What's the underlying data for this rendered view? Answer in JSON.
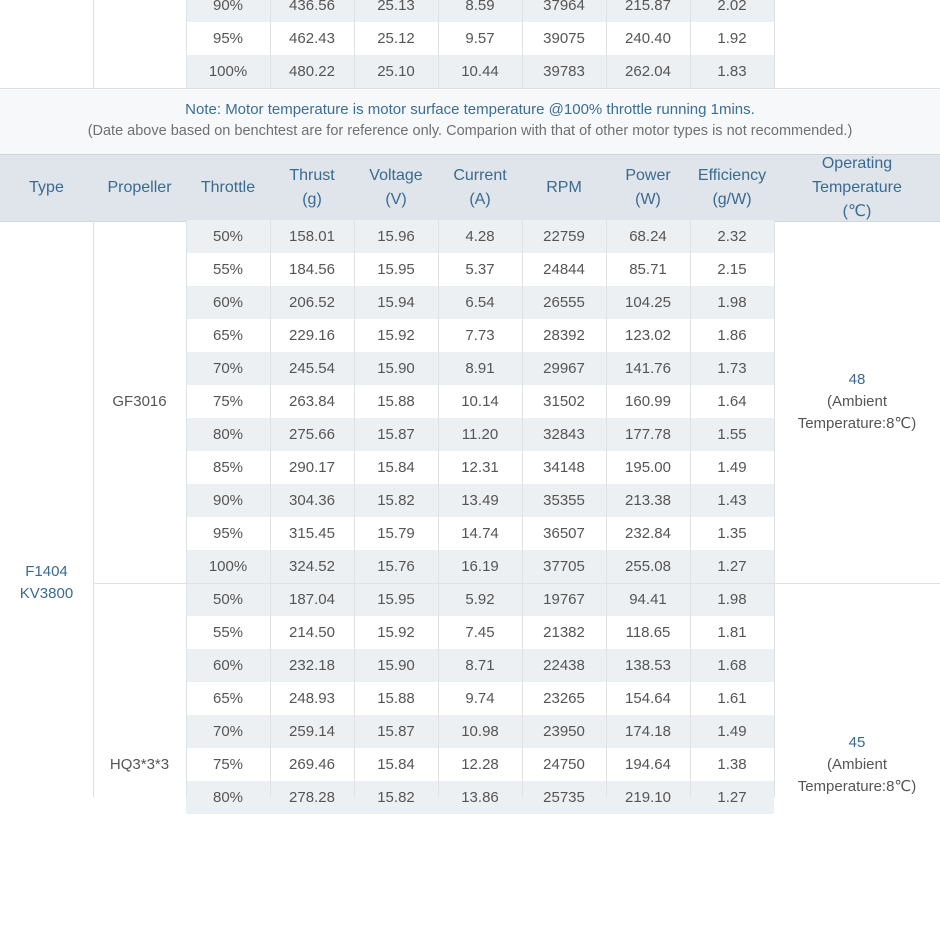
{
  "top_table": {
    "rows": [
      [
        "90%",
        "436.56",
        "25.13",
        "8.59",
        "37964",
        "215.87",
        "2.02"
      ],
      [
        "95%",
        "462.43",
        "25.12",
        "9.57",
        "39075",
        "240.40",
        "1.92"
      ],
      [
        "100%",
        "480.22",
        "25.10",
        "10.44",
        "39783",
        "262.04",
        "1.83"
      ]
    ]
  },
  "notes": {
    "line1": "Note: Motor temperature is motor surface temperature @100% throttle running 1mins.",
    "line2": "(Date above based on benchtest are for reference only. Comparion with that of other motor types is not recommended.)"
  },
  "header": {
    "columns": [
      [
        "Type"
      ],
      [
        "Propeller"
      ],
      [
        "Throttle"
      ],
      [
        "Thrust",
        "(g)"
      ],
      [
        "Voltage",
        "(V)"
      ],
      [
        "Current",
        "(A)"
      ],
      [
        "RPM"
      ],
      [
        "Power",
        "(W)"
      ],
      [
        "Efficiency",
        "(g/W)"
      ],
      [
        "Operating",
        "Temperature",
        "(℃)"
      ]
    ]
  },
  "motor": {
    "type_lines": [
      "F1404",
      "KV3800"
    ],
    "groups": [
      {
        "propeller": "GF3016",
        "temperature_lines": [
          "48",
          "(Ambient",
          "Temperature:8℃)"
        ],
        "rows": [
          [
            "50%",
            "158.01",
            "15.96",
            "4.28",
            "22759",
            "68.24",
            "2.32"
          ],
          [
            "55%",
            "184.56",
            "15.95",
            "5.37",
            "24844",
            "85.71",
            "2.15"
          ],
          [
            "60%",
            "206.52",
            "15.94",
            "6.54",
            "26555",
            "104.25",
            "1.98"
          ],
          [
            "65%",
            "229.16",
            "15.92",
            "7.73",
            "28392",
            "123.02",
            "1.86"
          ],
          [
            "70%",
            "245.54",
            "15.90",
            "8.91",
            "29967",
            "141.76",
            "1.73"
          ],
          [
            "75%",
            "263.84",
            "15.88",
            "10.14",
            "31502",
            "160.99",
            "1.64"
          ],
          [
            "80%",
            "275.66",
            "15.87",
            "11.20",
            "32843",
            "177.78",
            "1.55"
          ],
          [
            "85%",
            "290.17",
            "15.84",
            "12.31",
            "34148",
            "195.00",
            "1.49"
          ],
          [
            "90%",
            "304.36",
            "15.82",
            "13.49",
            "35355",
            "213.38",
            "1.43"
          ],
          [
            "95%",
            "315.45",
            "15.79",
            "14.74",
            "36507",
            "232.84",
            "1.35"
          ],
          [
            "100%",
            "324.52",
            "15.76",
            "16.19",
            "37705",
            "255.08",
            "1.27"
          ]
        ]
      },
      {
        "propeller": "HQ3*3*3",
        "temperature_lines": [
          "45",
          "(Ambient",
          "Temperature:8℃)"
        ],
        "rows": [
          [
            "50%",
            "187.04",
            "15.95",
            "5.92",
            "19767",
            "94.41",
            "1.98"
          ],
          [
            "55%",
            "214.50",
            "15.92",
            "7.45",
            "21382",
            "118.65",
            "1.81"
          ],
          [
            "60%",
            "232.18",
            "15.90",
            "8.71",
            "22438",
            "138.53",
            "1.68"
          ],
          [
            "65%",
            "248.93",
            "15.88",
            "9.74",
            "23265",
            "154.64",
            "1.61"
          ],
          [
            "70%",
            "259.14",
            "15.87",
            "10.98",
            "23950",
            "174.18",
            "1.49"
          ],
          [
            "75%",
            "269.46",
            "15.84",
            "12.28",
            "24750",
            "194.64",
            "1.38"
          ],
          [
            "80%",
            "278.28",
            "15.82",
            "13.86",
            "25735",
            "219.10",
            "1.27"
          ]
        ]
      }
    ]
  }
}
